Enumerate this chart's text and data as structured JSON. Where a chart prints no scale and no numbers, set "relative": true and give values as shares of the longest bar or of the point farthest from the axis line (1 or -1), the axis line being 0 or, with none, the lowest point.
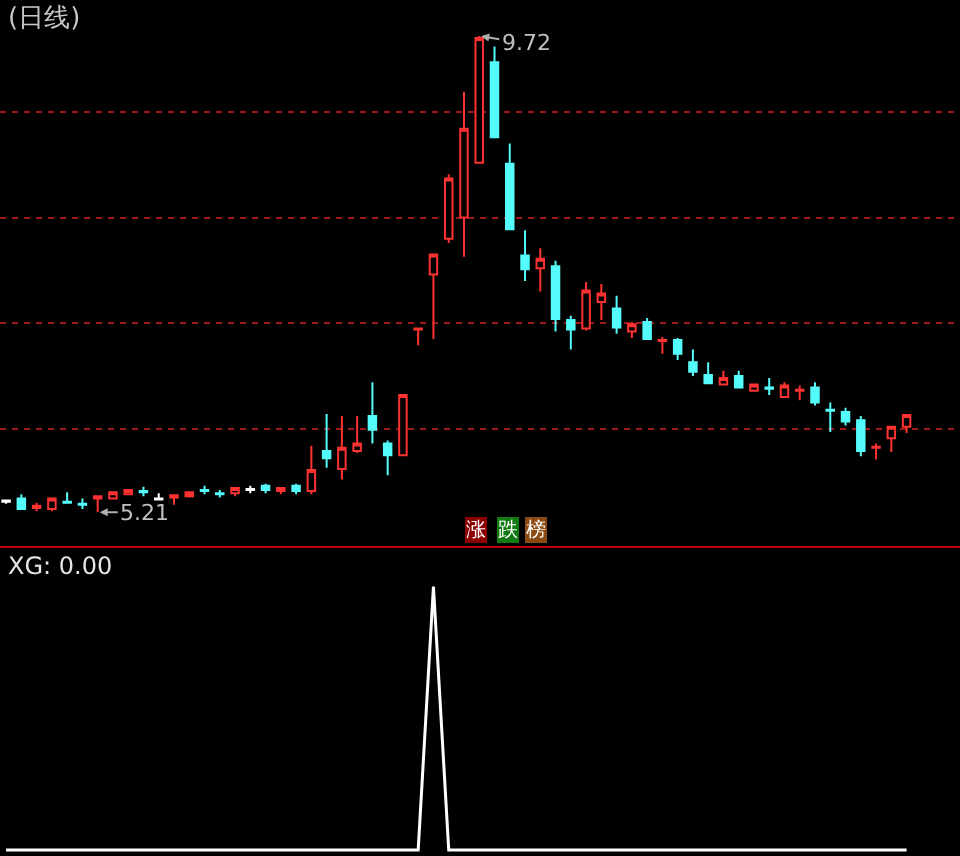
{
  "chart_data": [
    {
      "type": "candlestick",
      "title": "(日线)",
      "categories": [
        null,
        null,
        null,
        null,
        null,
        null,
        null,
        null,
        null,
        null,
        null,
        null,
        null,
        null,
        null,
        null,
        null,
        null,
        null,
        null,
        null,
        null,
        null,
        null,
        null,
        null,
        null,
        null,
        null,
        null,
        null,
        null,
        null,
        null,
        null,
        null,
        null,
        null,
        null,
        null,
        null,
        null,
        null,
        null,
        null,
        null,
        null,
        null,
        null,
        null,
        null,
        null,
        null,
        null,
        null,
        null,
        null,
        null,
        null,
        null
      ],
      "ohlc": [
        [
          5.31,
          5.33,
          5.29,
          5.32
        ],
        [
          5.34,
          5.38,
          5.24,
          5.24
        ],
        [
          5.25,
          5.3,
          5.22,
          5.27
        ],
        [
          5.24,
          5.34,
          5.22,
          5.34
        ],
        [
          5.31,
          5.4,
          5.3,
          5.3
        ],
        [
          5.29,
          5.34,
          5.24,
          5.28
        ],
        [
          5.34,
          5.36,
          5.21,
          5.36
        ],
        [
          5.34,
          5.4,
          5.34,
          5.4
        ],
        [
          5.38,
          5.42,
          5.37,
          5.42
        ],
        [
          5.41,
          5.45,
          5.36,
          5.4
        ],
        [
          5.33,
          5.39,
          5.33,
          5.34
        ],
        [
          5.35,
          5.38,
          5.28,
          5.37
        ],
        [
          5.36,
          5.4,
          5.35,
          5.4
        ],
        [
          5.42,
          5.46,
          5.38,
          5.41
        ],
        [
          5.39,
          5.42,
          5.35,
          5.38
        ],
        [
          5.39,
          5.44,
          5.36,
          5.44
        ],
        [
          5.42,
          5.46,
          5.39,
          5.43
        ],
        [
          5.46,
          5.48,
          5.39,
          5.42
        ],
        [
          5.41,
          5.44,
          5.38,
          5.44
        ],
        [
          5.46,
          5.48,
          5.38,
          5.41
        ],
        [
          5.41,
          5.84,
          5.38,
          5.61
        ],
        [
          5.79,
          6.14,
          5.63,
          5.72
        ],
        [
          5.62,
          6.12,
          5.52,
          5.82
        ],
        [
          5.79,
          6.12,
          5.77,
          5.86
        ],
        [
          6.12,
          6.44,
          5.86,
          5.99
        ],
        [
          5.86,
          5.89,
          5.56,
          5.75
        ],
        [
          5.75,
          6.32,
          5.75,
          6.32
        ],
        [
          6.94,
          6.95,
          6.79,
          6.95
        ],
        [
          7.46,
          7.65,
          6.85,
          7.65
        ],
        [
          7.8,
          8.41,
          7.76,
          8.37
        ],
        [
          8.0,
          9.19,
          7.63,
          8.84
        ],
        [
          8.52,
          9.72,
          8.52,
          9.7
        ],
        [
          9.47,
          9.62,
          8.76,
          8.76
        ],
        [
          8.51,
          8.7,
          7.89,
          7.89
        ],
        [
          7.64,
          7.88,
          7.4,
          7.51
        ],
        [
          7.52,
          7.71,
          7.3,
          7.61
        ],
        [
          7.54,
          7.59,
          6.92,
          7.04
        ],
        [
          7.03,
          7.07,
          6.75,
          6.94
        ],
        [
          6.95,
          7.39,
          6.93,
          7.31
        ],
        [
          7.2,
          7.37,
          7.03,
          7.28
        ],
        [
          7.14,
          7.26,
          6.9,
          6.96
        ],
        [
          6.92,
          7.01,
          6.86,
          6.99
        ],
        [
          7.01,
          7.05,
          6.85,
          6.85
        ],
        [
          6.83,
          6.87,
          6.71,
          6.84
        ],
        [
          6.84,
          6.86,
          6.65,
          6.71
        ],
        [
          6.63,
          6.75,
          6.5,
          6.54
        ],
        [
          6.51,
          6.63,
          6.43,
          6.43
        ],
        [
          6.42,
          6.55,
          6.42,
          6.48
        ],
        [
          6.5,
          6.55,
          6.39,
          6.39
        ],
        [
          6.36,
          6.42,
          6.36,
          6.42
        ],
        [
          6.39,
          6.48,
          6.32,
          6.38
        ],
        [
          6.3,
          6.44,
          6.3,
          6.41
        ],
        [
          6.36,
          6.41,
          6.27,
          6.37
        ],
        [
          6.39,
          6.44,
          6.22,
          6.25
        ],
        [
          6.18,
          6.25,
          5.97,
          6.17
        ],
        [
          6.16,
          6.2,
          6.03,
          6.07
        ],
        [
          6.08,
          6.12,
          5.74,
          5.79
        ],
        [
          5.82,
          5.86,
          5.71,
          5.83
        ],
        [
          5.91,
          6.02,
          5.78,
          6.02
        ],
        [
          6.02,
          6.13,
          5.96,
          6.13
        ]
      ],
      "colors": [
        "#ffffff",
        "#54fcfc",
        "#ff3232",
        "#ff3232",
        "#54fcfc",
        "#54fcfc",
        "#ff3232",
        "#ff3232",
        "#ff3232",
        "#54fcfc",
        "#ffffff",
        "#ff3232",
        "#ff3232",
        "#54fcfc",
        "#54fcfc",
        "#ff3232",
        "#ffffff",
        "#54fcfc",
        "#ff3232",
        "#54fcfc",
        "#ff3232",
        "#54fcfc",
        "#ff3232",
        "#ff3232",
        "#54fcfc",
        "#54fcfc",
        "#ff3232",
        "#ff3232",
        "#ff3232",
        "#ff3232",
        "#ff3232",
        "#ff3232",
        "#54fcfc",
        "#54fcfc",
        "#54fcfc",
        "#ff3232",
        "#54fcfc",
        "#54fcfc",
        "#ff3232",
        "#ff3232",
        "#54fcfc",
        "#ff3232",
        "#54fcfc",
        "#ff3232",
        "#54fcfc",
        "#54fcfc",
        "#54fcfc",
        "#ff3232",
        "#54fcfc",
        "#ff3232",
        "#54fcfc",
        "#ff3232",
        "#ff3232",
        "#54fcfc",
        "#54fcfc",
        "#54fcfc",
        "#54fcfc",
        "#ff3232",
        "#ff3232",
        "#ff3232"
      ],
      "ylim": [
        4.89,
        10.06
      ],
      "yticks": [
        {
          "value": 6,
          "label": null
        },
        {
          "value": 7,
          "label": null
        },
        {
          "value": 8,
          "label": null
        },
        {
          "value": 9,
          "label": null
        }
      ],
      "grid": "y",
      "tick_labels": false,
      "annotations": [
        "9.72",
        "5.21",
        "涨",
        "跌",
        "榜"
      ]
    },
    {
      "type": "line",
      "title": "XG: 0.00",
      "categories": [
        null,
        null,
        null,
        null,
        null,
        null,
        null,
        null,
        null,
        null,
        null,
        null,
        null,
        null,
        null,
        null,
        null,
        null,
        null,
        null,
        null,
        null,
        null,
        null,
        null,
        null,
        null,
        null,
        null,
        null,
        null,
        null,
        null,
        null,
        null,
        null,
        null,
        null,
        null,
        null,
        null,
        null,
        null,
        null,
        null,
        null,
        null,
        null,
        null,
        null,
        null,
        null,
        null,
        null,
        null,
        null,
        null,
        null,
        null,
        null
      ],
      "relative": true,
      "tick_labels": false,
      "series": [
        {
          "color": "#ffffff",
          "values": [
            0,
            0,
            0,
            0,
            0,
            0,
            0,
            0,
            0,
            0,
            0,
            0,
            0,
            0,
            0,
            0,
            0,
            0,
            0,
            0,
            0,
            0,
            0,
            0,
            0,
            0,
            0,
            0,
            1,
            0,
            0,
            0,
            0,
            0,
            0,
            0,
            0,
            0,
            0,
            0,
            0,
            0,
            0,
            0,
            0,
            0,
            0,
            0,
            0,
            0,
            0,
            0,
            0,
            0,
            0,
            0,
            0,
            0,
            0,
            0
          ]
        }
      ]
    }
  ]
}
